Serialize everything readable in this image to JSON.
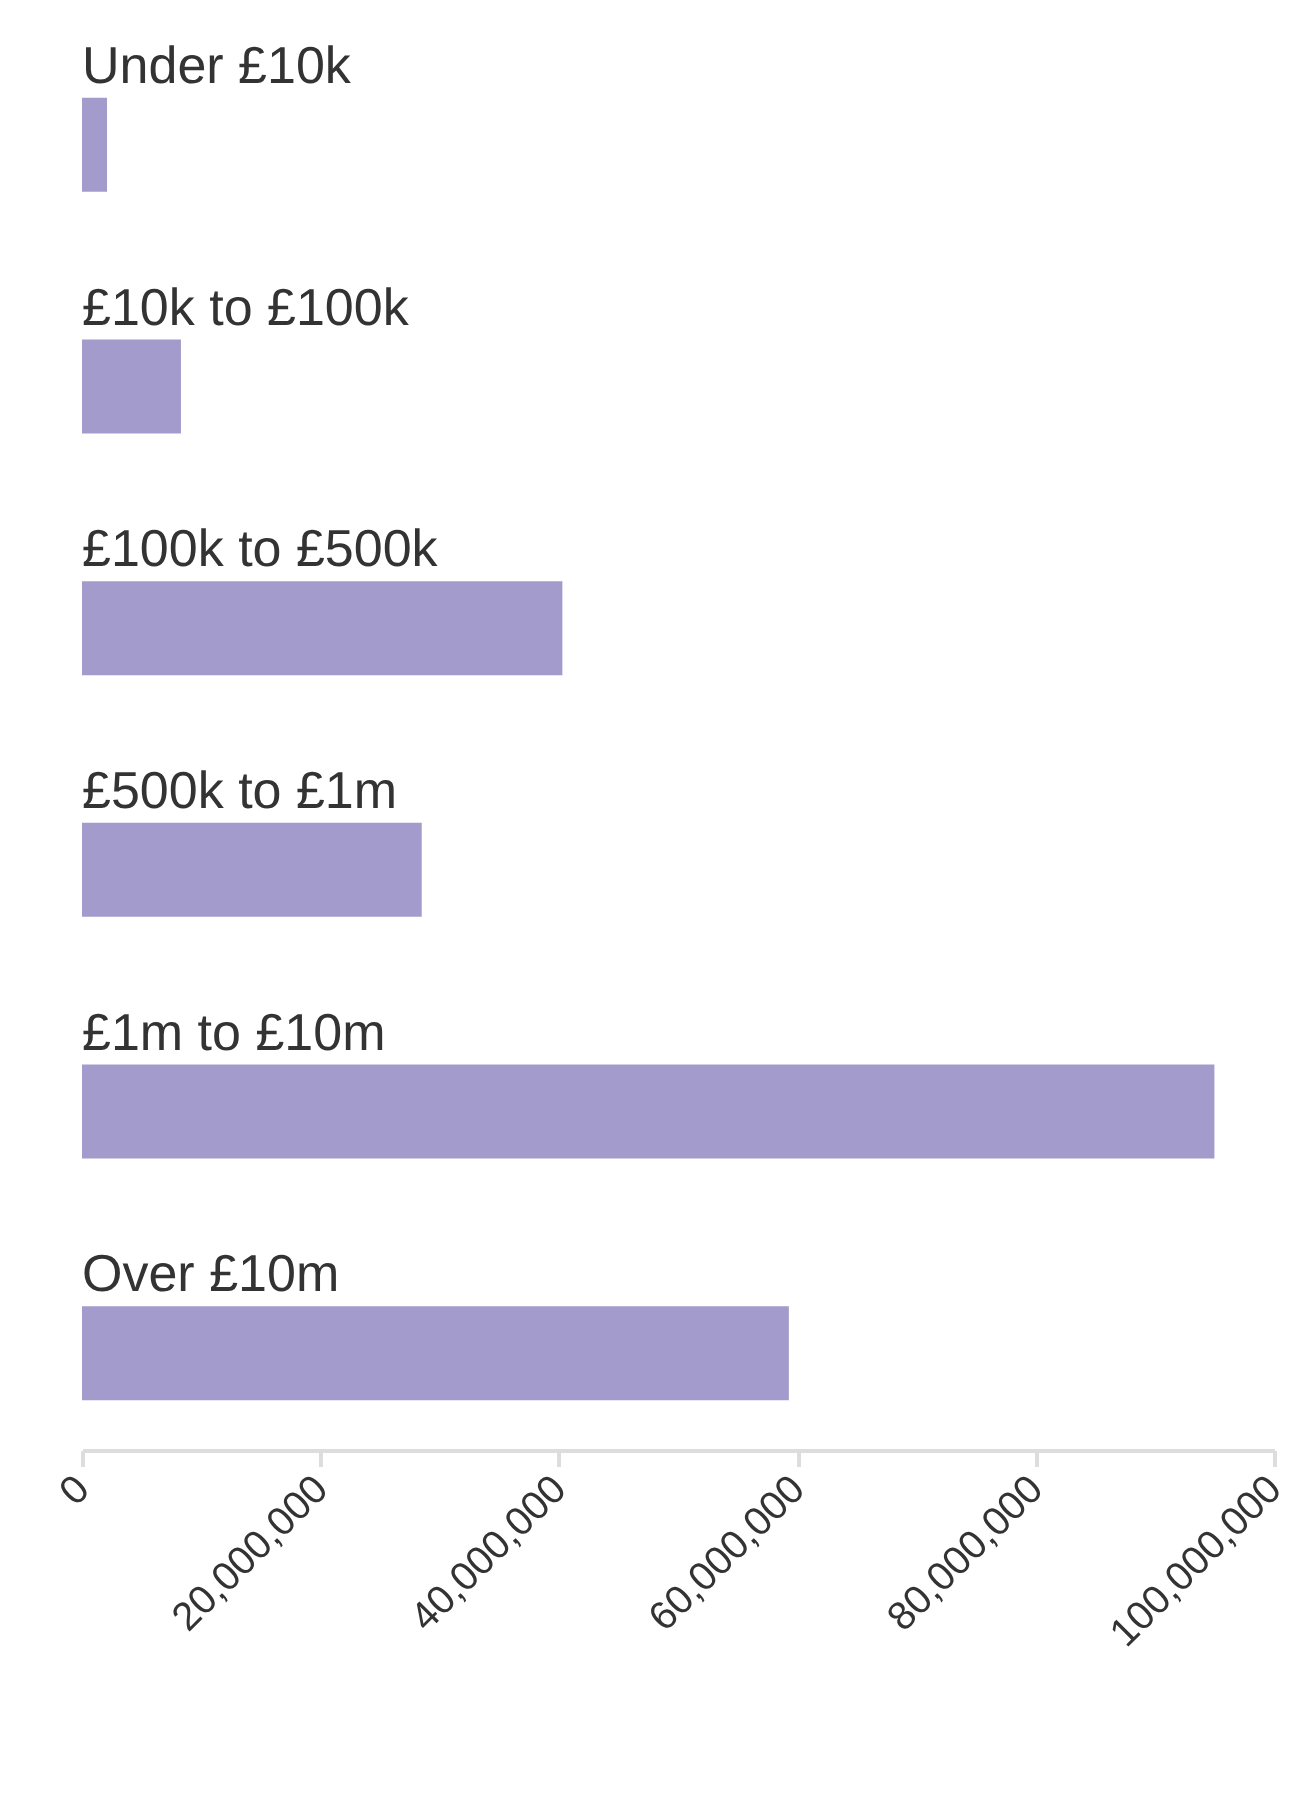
{
  "chart_data": {
    "type": "bar",
    "orientation": "horizontal",
    "categories": [
      "Under £10k",
      "£10k to £100k",
      "£100k to £500k",
      "£500k to £1m",
      "£1m to £10m",
      "Over £10m"
    ],
    "values": [
      2100000,
      8300000,
      40300000,
      28500000,
      95000000,
      59300000
    ],
    "color": "#a29bcb",
    "xlim": [
      0,
      100000000
    ],
    "xticks": [
      0,
      {
        "value": 20000000,
        "label": "20,000,000"
      },
      {
        "value": 40000000,
        "label": "40,000,000"
      },
      {
        "value": 60000000,
        "label": "60,000,000"
      },
      {
        "value": 80000000,
        "label": "80,000,000"
      },
      {
        "value": 100000000,
        "label": "100,000,000"
      }
    ],
    "grid": false
  }
}
